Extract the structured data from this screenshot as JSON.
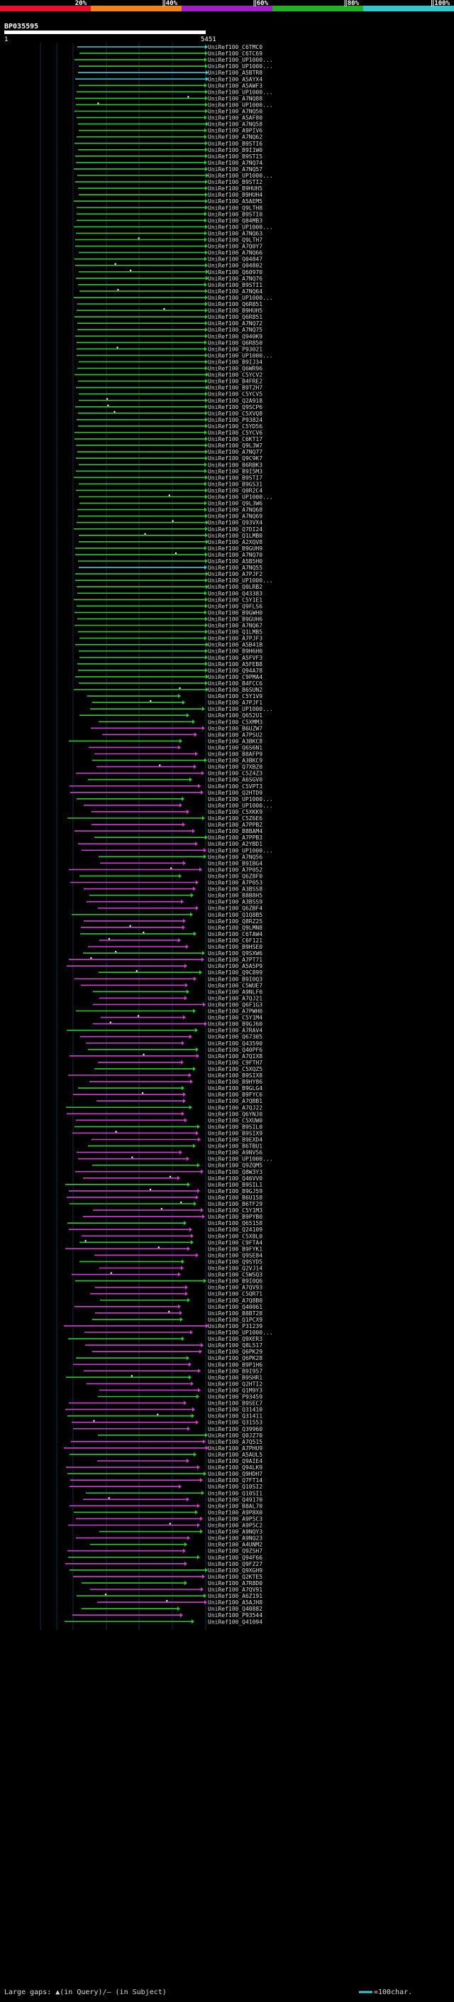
{
  "query": {
    "name": "BP035595",
    "start_label": "1",
    "end_label": "5451"
  },
  "colors": {
    "background": "#000000",
    "red": "#e8102a",
    "orange": "#f08418",
    "purple": "#a020c8",
    "green": "#24b024",
    "cyan": "#34c6ce",
    "magenta": "#d040d0",
    "hit_green": "#30c830",
    "hit_cyan": "#40c8d8",
    "label": "#dcdcdc",
    "axis": "#ffffff",
    "grid": "#1c2a44"
  },
  "legend": {
    "scale_labels": [
      "20%",
      "‖40%",
      "‖60%",
      "‖80%",
      "‖100%"
    ],
    "note": "Large gaps: ▲(in Query)/– (in Subject)",
    "scale_bar_label": "=100char."
  },
  "chart_data": {
    "type": "alignment-overview",
    "query_length": 5451,
    "color_scale": [
      {
        "label": "20%",
        "color": "red"
      },
      {
        "label": "40%",
        "color": "orange"
      },
      {
        "label": "60%",
        "color": "purple"
      },
      {
        "label": "80%",
        "color": "green"
      },
      {
        "label": "100%",
        "color": "cyan"
      }
    ],
    "hit_labels": [
      "UniRef100_C6TMC0",
      "UniRef100_C6TC69",
      "UniRef100_UP1000...",
      "UniRef100_UP1000...",
      "UniRef100_A5BTR8",
      "UniRef100_A5AYX4",
      "UniRef100_A5AWF3",
      "UniRef100_UP1000...",
      "UniRef100_A7NQ88",
      "UniRef100_UP1000...",
      "UniRef100_A7NQ50",
      "UniRef100_A5AF80",
      "UniRef100_A7NQ58",
      "UniRef100_A9PIV6",
      "UniRef100_A7NQ62",
      "UniRef100_B9STI6",
      "UniRef100_B9I1W0",
      "UniRef100_B9STI5",
      "UniRef100_A7NQ74",
      "UniRef100_A7NQ57",
      "UniRef100_UP1000...",
      "UniRef100_B9STI2",
      "UniRef100_B9HUH5",
      "UniRef100_B9HUH4",
      "UniRef100_A5AEM5",
      "UniRef100_Q9LTH8",
      "UniRef100_B9STI0",
      "UniRef100_Q84MB3",
      "UniRef100_UP1000...",
      "UniRef100_A7NQ63",
      "UniRef100_Q9LTH7",
      "UniRef100_A7Q0Y7",
      "UniRef100_A7NQ66",
      "UniRef100_Q04847",
      "UniRef100_Q04802",
      "UniRef100_Q60970",
      "UniRef100_A7NQ76",
      "UniRef100_B9STI1",
      "UniRef100_A7NQ64",
      "UniRef100_UP1000...",
      "UniRef100_Q6R851",
      "UniRef100_B9HUH5",
      "UniRef100_Q6R851",
      "UniRef100_A7NQ72",
      "UniRef100_A7NQ75",
      "UniRef100_Q940K9",
      "UniRef100_Q6R850",
      "UniRef100_P93021",
      "UniRef100_UP1000...",
      "UniRef100_B9IJ34",
      "UniRef100_Q6WR96",
      "UniRef100_C5YCV2",
      "UniRef100_B4FRE2",
      "UniRef100_B9T2H7",
      "UniRef100_C5YCV5",
      "UniRef100_Q2A918",
      "UniRef100_Q9SCP6",
      "UniRef100_C5XVQ8",
      "UniRef100_P93824",
      "UniRef100_C5YD56",
      "UniRef100_C5YCV6",
      "UniRef100_C6KT17",
      "UniRef100_Q9L3W7",
      "UniRef100_A7NQ77",
      "UniRef100_Q9C9K7",
      "UniRef100_B6RBK3",
      "UniRef100_B9I5M3",
      "UniRef100_B9STI7",
      "UniRef100_B9GS31",
      "UniRef100_Q0R2C4",
      "UniRef100_UP1000...",
      "UniRef100_Q9L3W6",
      "UniRef100_A7NQ68",
      "UniRef100_A7NQ69",
      "UniRef100_Q93VX4",
      "UniRef100_Q7DI24",
      "UniRef100_Q1LMB0",
      "UniRef100_A2XQV8",
      "UniRef100_B9GUH9",
      "UniRef100_A7NQ70",
      "UniRef100_A5B5H0",
      "UniRef100_A7NQ55",
      "UniRef100_A7PJF2",
      "UniRef100_UP1000...",
      "UniRef100_Q0LRB2",
      "UniRef100_Q43383",
      "UniRef100_C5Y1E1",
      "UniRef100_Q9FLS6",
      "UniRef100_B9GWH0",
      "UniRef100_B9GUH6",
      "UniRef100_A7NQ67",
      "UniRef100_Q1LMB5",
      "UniRef100_A7PJF3",
      "UniRef100_A5B41B",
      "UniRef100_B9H6H0",
      "UniRef100_A5FVF3",
      "UniRef100_A5FEB8",
      "UniRef100_Q94A78",
      "UniRef100_C9PMA4",
      "UniRef100_B4FCC6",
      "UniRef100_B6SUN2",
      "UniRef100_C5Y1V9",
      "UniRef100_A7PJF1",
      "UniRef100_UP1000...",
      "UniRef100_Q652U1",
      "UniRef100_C5XMM3",
      "UniRef100_B6UZW7",
      "UniRef100_A7PSU2",
      "UniRef100_A3BKC8",
      "UniRef100_Q6S6N1",
      "UniRef100_B8AFP9",
      "UniRef100_A3BKC9",
      "UniRef100_Q7XBZ0",
      "UniRef100_C5Z4Z3",
      "UniRef100_A6SGV0",
      "UniRef100_C5VPT3",
      "UniRef100_Q2HTD9",
      "UniRef100_UP1000...",
      "UniRef100_UP1000...",
      "UniRef100_C5XKK9",
      "UniRef100_C5Z6E6",
      "UniRef100_A7PPB2",
      "UniRef100_B8BAM4",
      "UniRef100_A7PPB3",
      "UniRef100_A2YBD1",
      "UniRef100_UP1000...",
      "UniRef100_A7NQ56",
      "UniRef100_B9IBG4",
      "UniRef100_A7P052",
      "UniRef100_Q6Z8F0",
      "UniRef100_A7P053",
      "UniRef100_A3BSS8",
      "UniRef100_B8B8H5",
      "UniRef100_A3BSS9",
      "UniRef100_Q6ZBF4",
      "UniRef100_Q1Q8B5",
      "UniRef100_Q8RZ25",
      "UniRef100_Q9LMN8",
      "UniRef100_C6TAW4",
      "UniRef100_C6F121",
      "UniRef100_B9HSE0",
      "UniRef100_Q9SXW6",
      "UniRef100_A7PT71",
      "UniRef100_A5A5P9",
      "UniRef100_Q9C899",
      "UniRef100_B9I0Q3",
      "UniRef100_C5WUE7",
      "UniRef100_A9NLF0",
      "UniRef100_A7QJ21",
      "UniRef100_Q6F1G3",
      "UniRef100_A7PWH0",
      "UniRef100_C5Y1M4",
      "UniRef100_B9GJ60",
      "UniRef100_A7RAV4",
      "UniRef100_Q67305",
      "UniRef100_Q43590",
      "UniRef100_Q40PF6",
      "UniRef100_A7QIX8",
      "UniRef100_C9FTH7",
      "UniRef100_C5XQZ5",
      "UniRef100_B9SIX8",
      "UniRef100_B9HY86",
      "UniRef100_B9GLG4",
      "UniRef100_B9FYC6",
      "UniRef100_A7QBB1",
      "UniRef100_A7QJ22",
      "UniRef100_Q6YNJ0",
      "UniRef100_C5XUW0",
      "UniRef100_B9SIL0",
      "UniRef100_B9SIX9",
      "UniRef100_B9EXD4",
      "UniRef100_B6TBU1",
      "UniRef100_A9NV56",
      "UniRef100_UP1000...",
      "UniRef100_Q9ZQM5",
      "UniRef100_Q8W3Y3",
      "UniRef100_Q46VV0",
      "UniRef100_B9SIL1",
      "UniRef100_B9GJ59",
      "UniRef100_B6U158",
      "UniRef100_B6TF29",
      "UniRef100_C5Y1M3",
      "UniRef100_B9PYB0",
      "UniRef100_Q65158",
      "UniRef100_Q24109",
      "UniRef100_C5X8L0",
      "UniRef100_C9FTA4",
      "UniRef100_B9FYK1",
      "UniRef100_Q9SE84",
      "UniRef100_Q9SYD5",
      "UniRef100_Q2VJ14",
      "UniRef100_C5WSQ3",
      "UniRef100_B9I0Q6",
      "UniRef100_A7QV93",
      "UniRef100_C5QR71",
      "UniRef100_A7Q8B0",
      "UniRef100_Q40061",
      "UniRef100_B8BT28",
      "UniRef100_Q1PCX9",
      "UniRef100_P31239",
      "UniRef100_UP1000...",
      "UniRef100_Q9XER3",
      "UniRef100_Q8L517",
      "UniRef100_Q6PK29",
      "UniRef100_Q6PK28",
      "UniRef100_B9P1H6",
      "UniRef100_B9I957",
      "UniRef100_B9SHR1",
      "UniRef100_Q2HTI2",
      "UniRef100_Q1M9Y3",
      "UniRef100_P93459",
      "UniRef100_B9SEC7",
      "UniRef100_Q31410",
      "UniRef100_Q31411",
      "UniRef100_Q31553",
      "UniRef100_Q39960",
      "UniRef100_Q0JZ70",
      "UniRef100_A7Q515",
      "UniRef100_A7PHU9",
      "UniRef100_A5AUL5",
      "UniRef100_Q9AIE4",
      "UniRef100_Q94LK9",
      "UniRef100_Q9HDH7",
      "UniRef100_Q7FT14",
      "UniRef100_Q10SI2",
      "UniRef100_Q10SI1",
      "UniRef100_Q49170",
      "UniRef100_B8AL70",
      "UniRef100_A9P8X0",
      "UniRef100_A9P5C3",
      "UniRef100_A9P5C2",
      "UniRef100_A9NQY3",
      "UniRef100_A9NQ23",
      "UniRef100_A4UNM2",
      "UniRef100_Q9ZSH7",
      "UniRef100_Q94F66",
      "UniRef100_Q9FZ27",
      "UniRef100_Q9XGH9",
      "UniRef100_Q2KTE5",
      "UniRef100_A7R8D0",
      "UniRef100_A7QV91",
      "UniRef100_A6Z191",
      "UniRef100_A5AJH8",
      "UniRef100_Q40882",
      "UniRef100_P93544",
      "UniRef100_Q41094"
    ]
  }
}
